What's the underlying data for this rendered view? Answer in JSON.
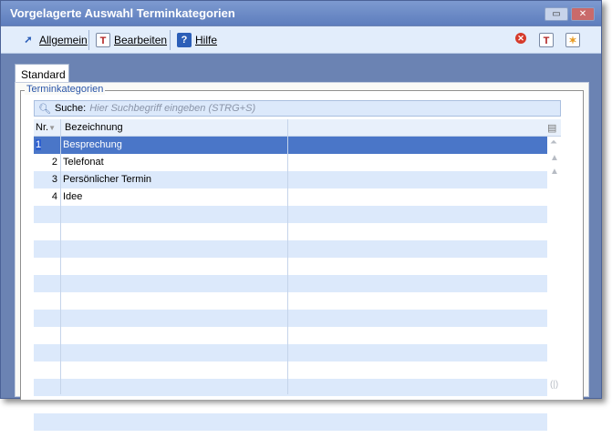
{
  "window": {
    "title": "Vorgelagerte Auswahl Terminkategorien",
    "minimize": "▭",
    "close": "✕"
  },
  "toolbar": {
    "allgemein": "Allgemein",
    "bearbeiten": "Bearbeiten",
    "hilfe": "Hilfe"
  },
  "tabs": [
    {
      "label": "Standard",
      "active": true
    }
  ],
  "group": {
    "label": "Terminkategorien"
  },
  "search": {
    "label": "Suche:",
    "placeholder": "Hier Suchbegriff eingeben (STRG+S)"
  },
  "table": {
    "columns": [
      "Nr.",
      "Bezeichnung"
    ],
    "rows": [
      {
        "nr": "1",
        "name": "Besprechung",
        "selected": true
      },
      {
        "nr": "2",
        "name": "Telefonat"
      },
      {
        "nr": "3",
        "name": "Persönlicher Termin"
      },
      {
        "nr": "4",
        "name": "Idee"
      }
    ]
  },
  "colors": {
    "accent": "#4a76c8",
    "row_alt": "#dce9fb",
    "window_bg": "#6b83b3"
  }
}
